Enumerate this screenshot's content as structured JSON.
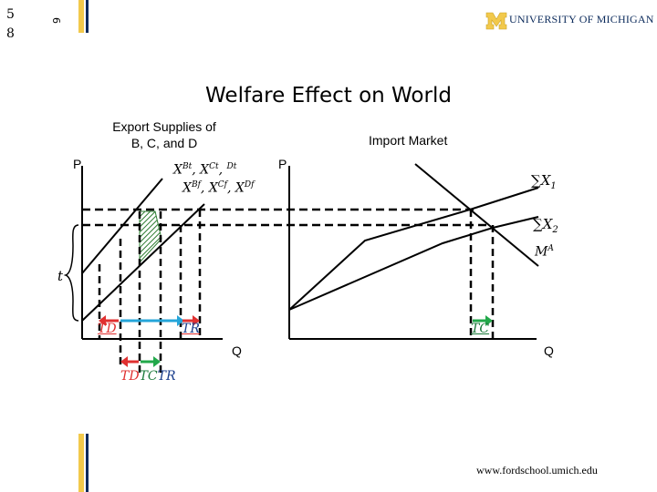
{
  "slide_number": [
    "5",
    "8"
  ],
  "rotated_number": "9",
  "header": {
    "logo_text": "UNIVERSITY OF MICHIGAN"
  },
  "title": "Welfare Effect on World",
  "left_panel": {
    "caption_line1": "Export Supplies of",
    "caption_line2": "B, C, and D",
    "y_axis_label": "P",
    "tariff_label": "t",
    "curve_label_row1": [
      "X",
      "Bt",
      ", X",
      "Ct",
      ", ",
      "Dt"
    ],
    "curve_label_row2": [
      "X",
      "Bf",
      ", X",
      "Cf",
      ", X",
      "Df"
    ],
    "arrow_labels": {
      "td": "TD",
      "tr": "TR"
    },
    "bottom_labels": [
      "TD",
      "TC",
      "TR"
    ]
  },
  "right_panel": {
    "caption": "Import Market",
    "y_axis_label": "P",
    "x_axis_label": "Q",
    "left_x_axis_label": "Q",
    "curve_labels": {
      "sum1": [
        "∑X",
        "1"
      ],
      "sum2": [
        "∑X",
        "2"
      ],
      "demand": [
        "M",
        "A"
      ]
    },
    "arrow_label_tc": "TC"
  },
  "colors": {
    "brand_blue": "#0b2a5b",
    "brand_maize": "#f2c94c",
    "arrow_red": "#e03030",
    "arrow_blue": "#25a5d9",
    "arrow_green": "#22a84a",
    "hatch_green": "#2e7d32"
  },
  "footer": {
    "url": "www.fordschool.umich.edu"
  }
}
